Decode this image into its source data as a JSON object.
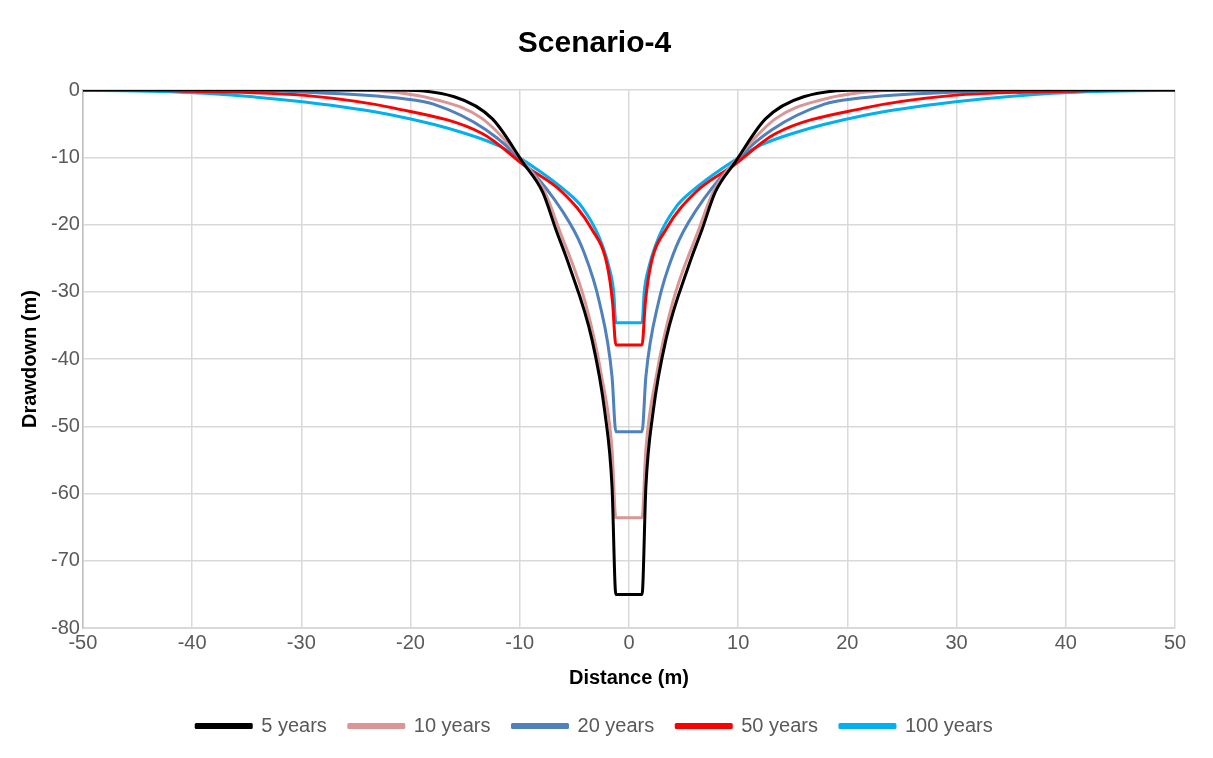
{
  "chart_data": {
    "type": "line",
    "title": "Scenario-4",
    "xlabel": "Distance (m)",
    "ylabel": "Drawdown (m)",
    "xlim": [
      -50,
      50
    ],
    "xticks": [
      -50,
      -40,
      -30,
      -20,
      -10,
      0,
      10,
      20,
      30,
      40,
      50
    ],
    "ylim": [
      -80,
      0
    ],
    "yticks": [
      -80,
      -70,
      -60,
      -50,
      -40,
      -30,
      -20,
      -10,
      0
    ],
    "grid": true,
    "legend": "bottom",
    "series": [
      {
        "name": "5 years",
        "color": "#000000",
        "x": [
          -50,
          -22,
          -16,
          -12.5,
          -9.7,
          -7.9,
          -6.7,
          -5.5,
          -3.4,
          -2.2,
          -1.55,
          -1.2,
          1.2,
          1.55,
          2.2,
          3.4,
          5.5,
          6.7,
          7.9,
          9.7,
          12.5,
          16,
          22,
          50
        ],
        "values": [
          0,
          0,
          -1,
          -4.3,
          -10.8,
          -15.2,
          -20.7,
          -26,
          -37,
          -48,
          -59,
          -75,
          -75,
          -59,
          -48,
          -37,
          -26,
          -20.7,
          -15.2,
          -10.8,
          -4.3,
          -1,
          0,
          0
        ]
      },
      {
        "name": "10 years",
        "color": "#d99694",
        "x": [
          -50,
          -25,
          -17.3,
          -13.4,
          -9.5,
          -7.7,
          -6.4,
          -4,
          -2.5,
          -1.55,
          -1.2,
          1.2,
          1.55,
          2.5,
          4,
          6.4,
          7.7,
          9.5,
          13.4,
          17.3,
          25,
          50
        ],
        "values": [
          0,
          0,
          -1.6,
          -4.3,
          -11,
          -15.2,
          -20.7,
          -31.6,
          -42.6,
          -53.4,
          -63.6,
          -63.6,
          -53.4,
          -42.6,
          -31.6,
          -20.7,
          -15.2,
          -11,
          -4.3,
          -1.6,
          0,
          0
        ]
      },
      {
        "name": "20 years",
        "color": "#4f81bd",
        "x": [
          -50,
          -40,
          -30,
          -20.6,
          -17.9,
          -13.1,
          -9.5,
          -6.1,
          -4.3,
          -2.7,
          -1.55,
          -1.2,
          1.2,
          1.55,
          2.7,
          4.3,
          6.1,
          9.5,
          13.1,
          17.9,
          20.6,
          30,
          40,
          50
        ],
        "values": [
          0,
          0,
          -0.3,
          -1.3,
          -2.1,
          -5.9,
          -11,
          -18,
          -23.4,
          -31.6,
          -42.6,
          -50.8,
          -50.8,
          -42.6,
          -31.6,
          -23.4,
          -18,
          -11,
          -5.9,
          -2.1,
          -1.3,
          -0.3,
          0,
          0
        ]
      },
      {
        "name": "50 years",
        "color": "#ff0000",
        "x": [
          -50,
          -45,
          -40,
          -29.7,
          -21.5,
          -13.4,
          -9.5,
          -6.1,
          -3.4,
          -2,
          -1.5,
          -1.2,
          1.2,
          1.5,
          2,
          3.4,
          6.1,
          9.5,
          13.4,
          21.5,
          29.7,
          40,
          45,
          50
        ],
        "values": [
          0,
          0,
          -0.2,
          -0.8,
          -2.7,
          -6.5,
          -11.3,
          -15.2,
          -20.7,
          -26,
          -31.6,
          -37.9,
          -37.9,
          -31.6,
          -26,
          -20.7,
          -15.2,
          -11.3,
          -6.5,
          -2.7,
          -0.8,
          -0.2,
          0,
          0
        ]
      },
      {
        "name": "100 years",
        "color": "#00b0f0",
        "x": [
          -50,
          -38.8,
          -29.7,
          -21.5,
          -14.9,
          -11.8,
          -8.5,
          -5.8,
          -4.3,
          -2.75,
          -1.85,
          -1.4,
          -1.2,
          1.2,
          1.4,
          1.85,
          2.75,
          4.3,
          5.8,
          8.5,
          11.8,
          14.9,
          21.5,
          29.7,
          38.8,
          50
        ],
        "values": [
          0,
          -0.5,
          -1.8,
          -3.8,
          -6.5,
          -8.4,
          -11.7,
          -15,
          -17.4,
          -21.8,
          -26.2,
          -30,
          -34.6,
          -34.6,
          -30,
          -26.2,
          -21.8,
          -17.4,
          -15,
          -11.7,
          -8.4,
          -6.5,
          -3.8,
          -1.8,
          -0.5,
          0
        ]
      }
    ]
  }
}
